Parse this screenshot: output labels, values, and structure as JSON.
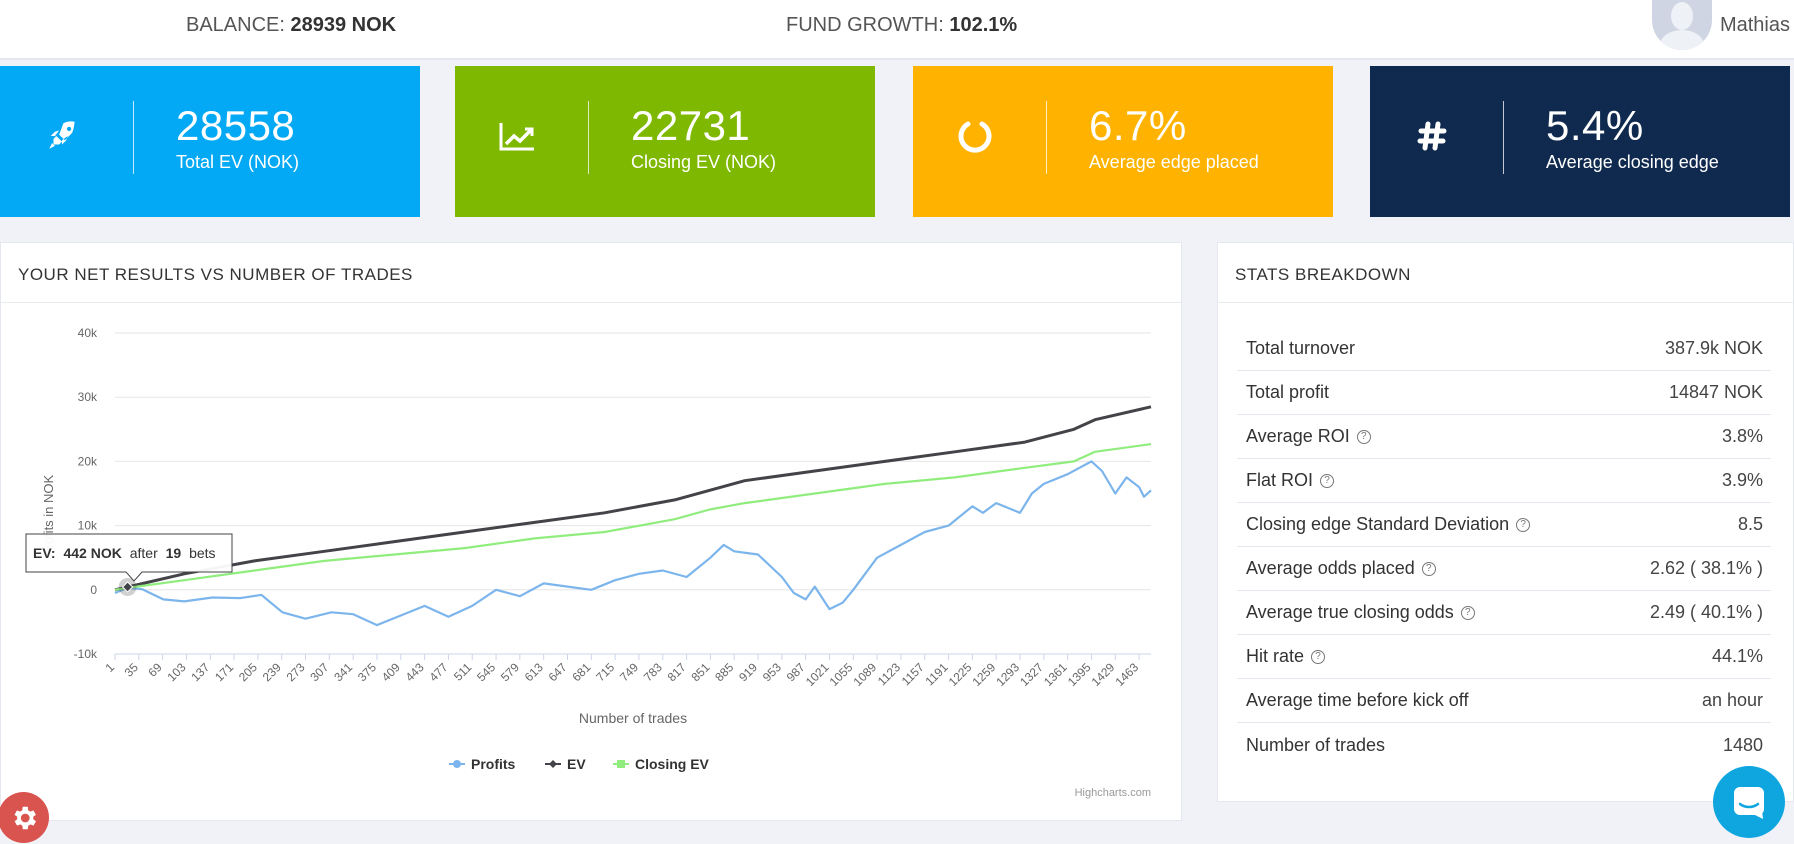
{
  "topbar": {
    "balance_label": "BALANCE:",
    "balance_value": "28939 NOK",
    "growth_label": "FUND GROWTH:",
    "growth_value": "102.1%",
    "username": "Mathias"
  },
  "cards": [
    {
      "value": "28558",
      "label": "Total EV (NOK)",
      "icon": "rocket-icon",
      "color": "#03a9f4"
    },
    {
      "value": "22731",
      "label": "Closing EV (NOK)",
      "icon": "line-chart-icon",
      "color": "#7fb800"
    },
    {
      "value": "6.7%",
      "label": "Average edge placed",
      "icon": "circle-notch-icon",
      "color": "#ffb300"
    },
    {
      "value": "5.4%",
      "label": "Average closing edge",
      "icon": "hashtag-icon",
      "color": "#0f2a4e"
    }
  ],
  "chart_panel": {
    "title": "YOUR NET RESULTS VS NUMBER OF TRADES",
    "credit": "Highcharts.com"
  },
  "tooltip": {
    "series": "EV:",
    "value": "442 NOK",
    "after": "after",
    "count": "19",
    "bets": "bets"
  },
  "chart_data": {
    "type": "line",
    "xlabel": "Number of trades",
    "ylabel": "Profits in NOK",
    "ylim": [
      -10000,
      40000
    ],
    "xlim": [
      1,
      1480
    ],
    "y_ticks": [
      "-10k",
      "0",
      "10k",
      "20k",
      "30k",
      "40k"
    ],
    "x_ticks": [
      1,
      35,
      69,
      103,
      137,
      171,
      205,
      239,
      273,
      307,
      341,
      375,
      409,
      443,
      477,
      511,
      545,
      579,
      613,
      647,
      681,
      715,
      749,
      783,
      817,
      851,
      885,
      919,
      953,
      987,
      1021,
      1055,
      1089,
      1123,
      1157,
      1191,
      1225,
      1259,
      1293,
      1327,
      1361,
      1395,
      1429,
      1463
    ],
    "series": [
      {
        "name": "Profits",
        "color": "#7cb5ec",
        "x": [
          1,
          19,
          40,
          70,
          100,
          140,
          180,
          210,
          240,
          273,
          310,
          341,
          375,
          409,
          443,
          477,
          511,
          545,
          579,
          613,
          647,
          681,
          715,
          749,
          783,
          817,
          851,
          870,
          885,
          919,
          953,
          970,
          987,
          1000,
          1021,
          1040,
          1055,
          1089,
          1123,
          1157,
          1191,
          1225,
          1240,
          1259,
          1293,
          1310,
          1327,
          1361,
          1395,
          1410,
          1429,
          1445,
          1463,
          1470,
          1480
        ],
        "y": [
          -500,
          300,
          100,
          -1500,
          -1800,
          -1200,
          -1300,
          -800,
          -3500,
          -4500,
          -3500,
          -3800,
          -5500,
          -4000,
          -2500,
          -4200,
          -2500,
          0,
          -1000,
          1000,
          500,
          0,
          1500,
          2500,
          3000,
          2000,
          5000,
          7000,
          6000,
          5500,
          2000,
          -500,
          -1500,
          500,
          -3000,
          -2000,
          0,
          5000,
          7000,
          9000,
          10000,
          13000,
          12000,
          13500,
          12000,
          15000,
          16500,
          18000,
          20000,
          18500,
          15000,
          17500,
          16000,
          14500,
          15500
        ]
      },
      {
        "name": "EV",
        "color": "#434348",
        "x": [
          1,
          19,
          100,
          200,
          300,
          400,
          500,
          600,
          700,
          800,
          850,
          900,
          1000,
          1100,
          1200,
          1300,
          1370,
          1400,
          1480
        ],
        "y": [
          0,
          442,
          2500,
          4500,
          6000,
          7500,
          9000,
          10500,
          12000,
          14000,
          15500,
          17000,
          18500,
          20000,
          21500,
          23000,
          25000,
          26500,
          28500
        ]
      },
      {
        "name": "Closing EV",
        "color": "#90ed7d",
        "x": [
          1,
          19,
          100,
          200,
          300,
          400,
          500,
          600,
          700,
          800,
          850,
          900,
          1000,
          1100,
          1200,
          1300,
          1370,
          1400,
          1480
        ],
        "y": [
          0,
          300,
          1500,
          3000,
          4500,
          5500,
          6500,
          8000,
          9000,
          11000,
          12500,
          13500,
          15000,
          16500,
          17500,
          19000,
          20000,
          21500,
          22700
        ]
      }
    ],
    "legend": "bottom-center",
    "grid": true
  },
  "stats": {
    "title": "STATS BREAKDOWN",
    "rows": [
      {
        "key": "Total turnover",
        "value": "387.9k NOK",
        "help": false
      },
      {
        "key": "Total profit",
        "value": "14847 NOK",
        "help": false
      },
      {
        "key": "Average ROI",
        "value": "3.8%",
        "help": true
      },
      {
        "key": "Flat ROI",
        "value": "3.9%",
        "help": true
      },
      {
        "key": "Closing edge Standard Deviation",
        "value": "8.5",
        "help": true
      },
      {
        "key": "Average odds placed",
        "value": "2.62 ( 38.1% )",
        "help": true
      },
      {
        "key": "Average true closing odds",
        "value": "2.49 ( 40.1% )",
        "help": true
      },
      {
        "key": "Hit rate",
        "value": "44.1%",
        "help": true
      },
      {
        "key": "Average time before kick off",
        "value": "an hour",
        "help": false
      },
      {
        "key": "Number of trades",
        "value": "1480",
        "help": false
      }
    ]
  }
}
